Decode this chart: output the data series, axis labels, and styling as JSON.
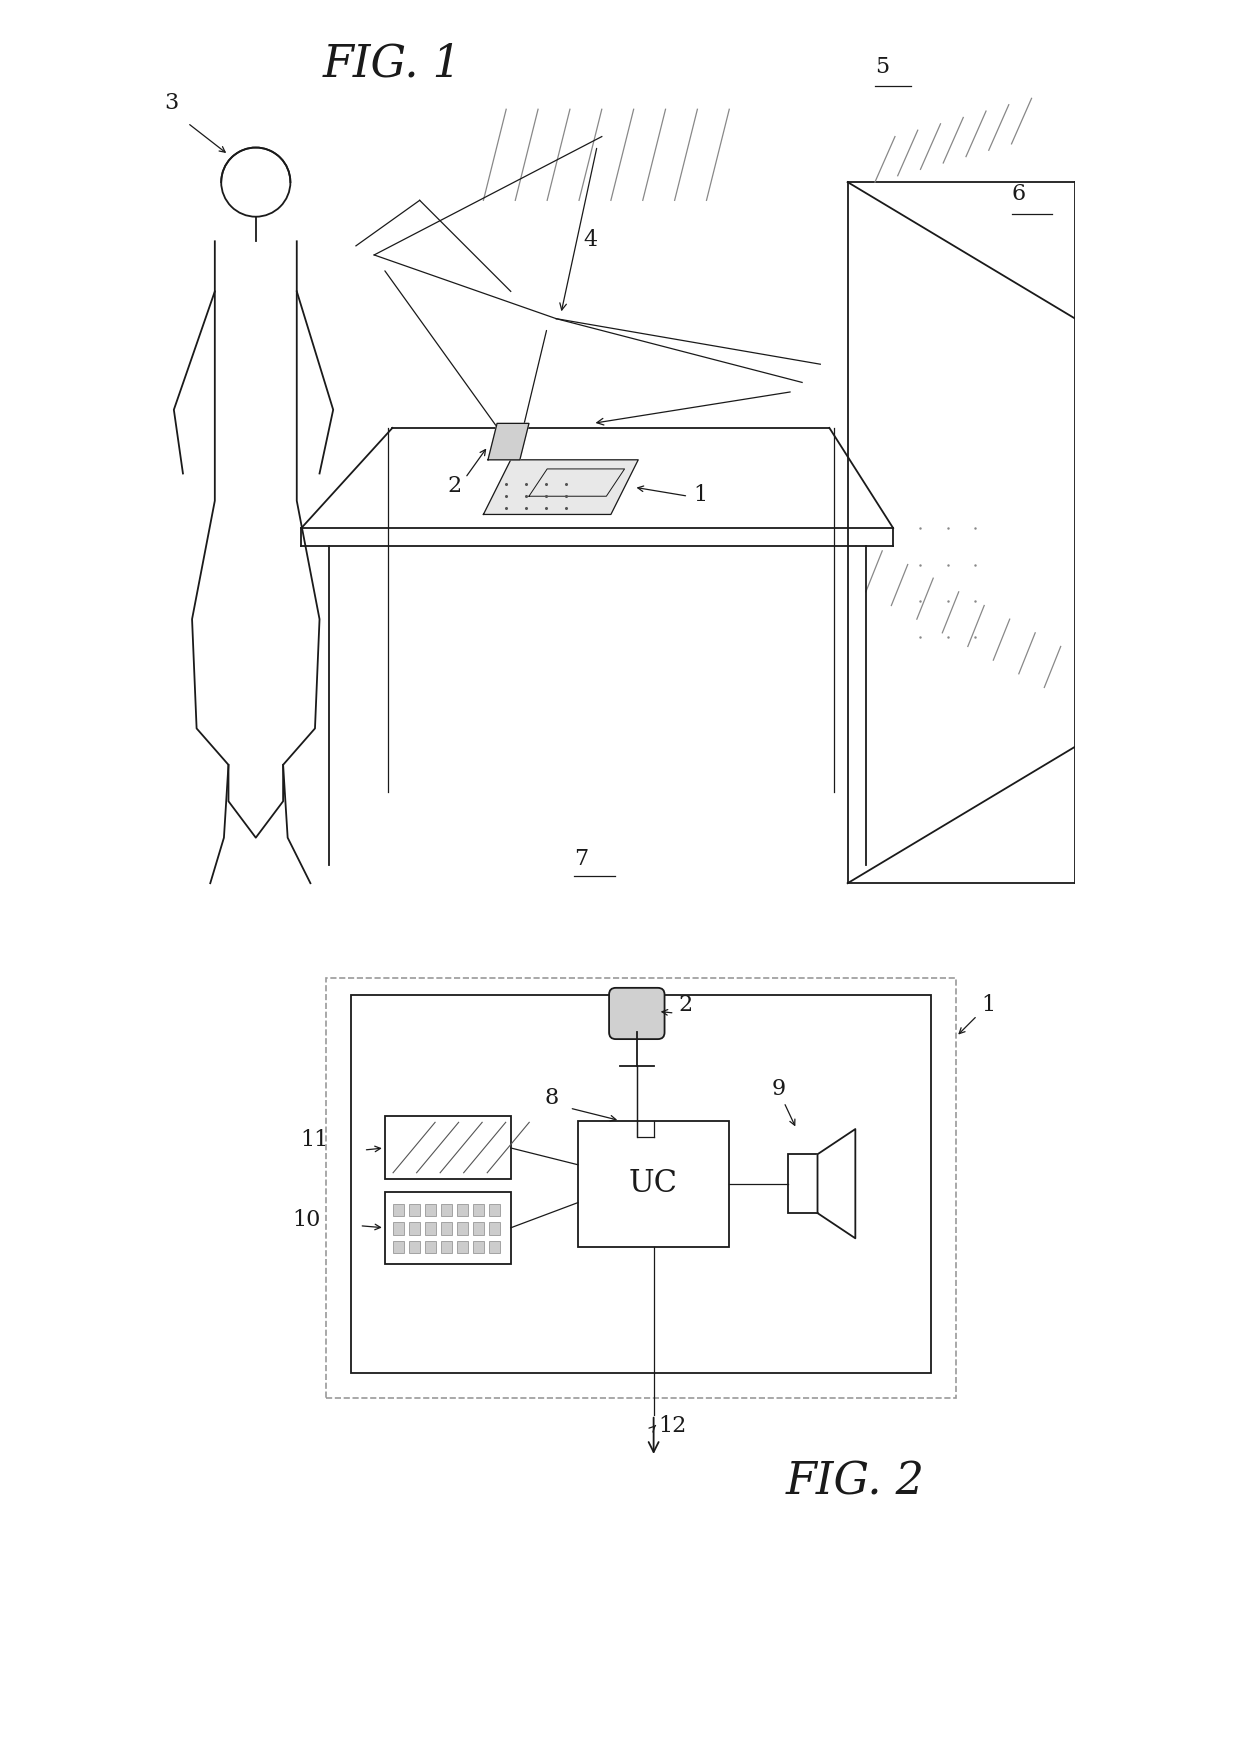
{
  "bg_color": "#ffffff",
  "lc": "#1a1a1a",
  "gray": "#888888",
  "fig1_label": "FIG. 1",
  "fig2_label": "FIG. 2"
}
